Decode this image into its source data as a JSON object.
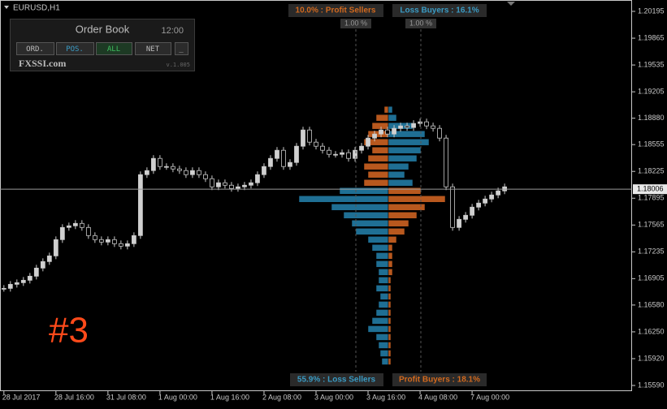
{
  "window": {
    "symbol": "EURUSD,H1",
    "annotation": "#3"
  },
  "panel": {
    "title": "Order Book",
    "time": "12:00",
    "buttons": [
      "ORD.",
      "POS.",
      "ALL",
      "NET",
      "_"
    ],
    "brand": "FXSSI.com",
    "version": "v.1.005"
  },
  "order_book": {
    "top_left": "10.0% : Profit Sellers",
    "top_right": "Loss Buyers : 16.1%",
    "bottom_left": "55.9% : Loss Sellers",
    "bottom_right": "Profit Buyers : 18.1%",
    "left_marker": "1.00 %",
    "right_marker": "1.00 %",
    "levels": [
      {
        "price": 1.18985,
        "left": 5,
        "right": 5
      },
      {
        "price": 1.18885,
        "left": 15,
        "right": 10
      },
      {
        "price": 1.18785,
        "left": 20,
        "right": 30
      },
      {
        "price": 1.18685,
        "left": 25,
        "right": 45
      },
      {
        "price": 1.18585,
        "left": 30,
        "right": 50
      },
      {
        "price": 1.18485,
        "left": 20,
        "right": 40
      },
      {
        "price": 1.18385,
        "left": 25,
        "right": 35
      },
      {
        "price": 1.18285,
        "left": 30,
        "right": 25
      },
      {
        "price": 1.18185,
        "left": 25,
        "right": 20
      },
      {
        "price": 1.18085,
        "left": 30,
        "right": 30
      },
      {
        "price": 1.17985,
        "left": 60,
        "right": 40
      },
      {
        "price": 1.17885,
        "left": 110,
        "right": 70
      },
      {
        "price": 1.17785,
        "left": 70,
        "right": 45
      },
      {
        "price": 1.17685,
        "left": 55,
        "right": 35
      },
      {
        "price": 1.17585,
        "left": 45,
        "right": 25
      },
      {
        "price": 1.17485,
        "left": 40,
        "right": 20
      },
      {
        "price": 1.17385,
        "left": 25,
        "right": 10
      },
      {
        "price": 1.17285,
        "left": 20,
        "right": 5
      },
      {
        "price": 1.17185,
        "left": 15,
        "right": 5
      },
      {
        "price": 1.17085,
        "left": 15,
        "right": 5
      },
      {
        "price": 1.16985,
        "left": 12,
        "right": 5
      },
      {
        "price": 1.16885,
        "left": 12,
        "right": 3
      },
      {
        "price": 1.16785,
        "left": 15,
        "right": 3
      },
      {
        "price": 1.16685,
        "left": 10,
        "right": 3
      },
      {
        "price": 1.16585,
        "left": 12,
        "right": 3
      },
      {
        "price": 1.16485,
        "left": 15,
        "right": 3
      },
      {
        "price": 1.16385,
        "left": 20,
        "right": 3
      },
      {
        "price": 1.16285,
        "left": 25,
        "right": 3
      },
      {
        "price": 1.16185,
        "left": 15,
        "right": 3
      },
      {
        "price": 1.16085,
        "left": 12,
        "right": 3
      },
      {
        "price": 1.15985,
        "left": 10,
        "right": 3
      },
      {
        "price": 1.15885,
        "left": 8,
        "right": 3
      }
    ]
  },
  "chart_data": {
    "type": "candlestick",
    "current_price": 1.18006,
    "values": [
      1.16785,
      1.16835,
      1.16855,
      1.16885,
      1.16935,
      1.17035,
      1.17115,
      1.17185,
      1.17385,
      1.17535,
      1.17555,
      1.17585,
      1.17535,
      1.17435,
      1.17385,
      1.17355,
      1.17385,
      1.17335,
      1.17305,
      1.17335,
      1.17435,
      1.18185,
      1.18235,
      1.18385,
      1.18285,
      1.18285,
      1.18255,
      1.18235,
      1.18185,
      1.18235,
      1.18185,
      1.18135,
      1.18035,
      1.18085,
      1.18055,
      1.18015,
      1.18035,
      1.18055,
      1.18085,
      1.18185,
      1.18285,
      1.18385,
      1.18485,
      1.18285,
      1.18335,
      1.18535,
      1.18735,
      1.18585,
      1.18535,
      1.18485,
      1.18435,
      1.18435,
      1.18455,
      1.18385,
      1.18485,
      1.18535,
      1.18635,
      1.18685,
      1.18735,
      1.18685,
      1.18755,
      1.18785,
      1.18765,
      1.18815,
      1.18835,
      1.18785,
      1.18755,
      1.18635,
      1.18035,
      1.17535,
      1.17635,
      1.17685,
      1.17785,
      1.17835,
      1.17885,
      1.17935,
      1.17985,
      1.18035
    ],
    "xlim": [
      -0.6,
      96.6
    ],
    "xticks": [
      {
        "value": 0,
        "label": "28 Jul 2017"
      },
      {
        "value": 8,
        "label": "28 Jul 16:00"
      },
      {
        "value": 16,
        "label": "31 Jul 08:00"
      },
      {
        "value": 24,
        "label": "1 Aug 00:00"
      },
      {
        "value": 32,
        "label": "1 Aug 16:00"
      },
      {
        "value": 40,
        "label": "2 Aug 08:00"
      },
      {
        "value": 48,
        "label": "3 Aug 00:00"
      },
      {
        "value": 56,
        "label": "3 Aug 16:00"
      },
      {
        "value": 64,
        "label": "4 Aug 08:00"
      },
      {
        "value": 72,
        "label": "7 Aug 00:00"
      }
    ],
    "ylim": [
      1.1552,
      1.20335
    ],
    "yticks": [
      {
        "value": 1.20195,
        "label": "1.20195"
      },
      {
        "value": 1.19865,
        "label": "1.19865"
      },
      {
        "value": 1.19535,
        "label": "1.19535"
      },
      {
        "value": 1.19205,
        "label": "1.19205"
      },
      {
        "value": 1.1888,
        "label": "1.18880"
      },
      {
        "value": 1.18555,
        "label": "1.18555"
      },
      {
        "value": 1.18225,
        "label": "1.18225"
      },
      {
        "value": 1.17895,
        "label": "1.17895"
      },
      {
        "value": 1.17565,
        "label": "1.17565"
      },
      {
        "value": 1.17235,
        "label": "1.17235"
      },
      {
        "value": 1.16905,
        "label": "1.16905"
      },
      {
        "value": 1.1658,
        "label": "1.16580"
      },
      {
        "value": 1.1625,
        "label": "1.16250"
      },
      {
        "value": 1.1592,
        "label": "1.15920"
      },
      {
        "value": 1.1559,
        "label": "1.15590"
      }
    ],
    "up_color": "#d0d0d0",
    "down_color": "#000000",
    "wick_color": "#c8c8c8",
    "left_side_colors": [
      "#b8581e",
      "#1f6f94"
    ],
    "right_side_colors": [
      "#1f6f94",
      "#b8581e"
    ]
  }
}
